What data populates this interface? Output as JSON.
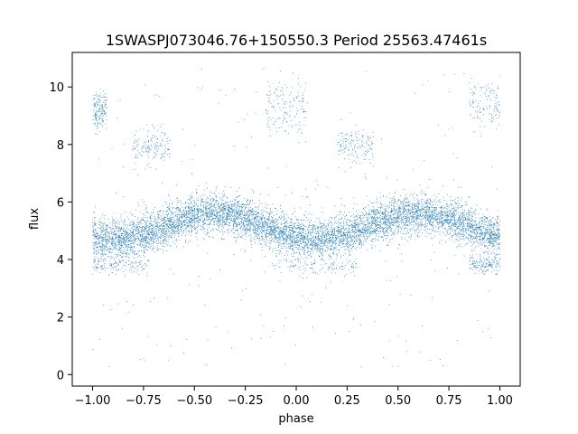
{
  "chart_data": {
    "type": "scatter",
    "title": "1SWASPJ073046.76+150550.3 Period 25563.47461s",
    "xlabel": "phase",
    "ylabel": "flux",
    "xlim": [
      -1.1,
      1.1
    ],
    "ylim": [
      -0.4,
      11.2
    ],
    "x_ticks": [
      -1.0,
      -0.75,
      -0.5,
      -0.25,
      0.0,
      0.25,
      0.5,
      0.75,
      1.0
    ],
    "x_tick_labels": [
      "−1.00",
      "−0.75",
      "−0.50",
      "−0.25",
      "0.00",
      "0.25",
      "0.50",
      "0.75",
      "1.00"
    ],
    "y_ticks": [
      0,
      2,
      4,
      6,
      8,
      10
    ],
    "y_tick_labels": [
      "0",
      "2",
      "4",
      "6",
      "8",
      "10"
    ],
    "grid": false,
    "point_color": "#1f77b4",
    "main_band": {
      "description_of_shape": "sinusoid",
      "phase_range": [
        -1.0,
        1.0
      ],
      "mean_flux": 5.15,
      "amplitude": 0.45,
      "minimum_phase": -0.95,
      "maximum_phase": -0.4,
      "scatter": 0.35
    },
    "secondary_groups": [
      {
        "phase_range": [
          -1.0,
          -0.72
        ],
        "flux_center": 3.8,
        "flux_spread": 0.15
      },
      {
        "phase_range": [
          -0.12,
          0.3
        ],
        "flux_center": 3.75,
        "flux_spread": 0.15
      },
      {
        "phase_range": [
          0.85,
          1.0
        ],
        "flux_center": 3.8,
        "flux_spread": 0.15
      },
      {
        "phase_range": [
          -1.0,
          -0.93
        ],
        "flux_center": 9.2,
        "flux_spread": 0.35
      },
      {
        "phase_range": [
          -0.15,
          0.05
        ],
        "flux_center": 9.3,
        "flux_spread": 0.5
      },
      {
        "phase_range": [
          0.85,
          1.0
        ],
        "flux_center": 9.4,
        "flux_spread": 0.4
      },
      {
        "phase_range": [
          -0.8,
          -0.62
        ],
        "flux_center": 8.0,
        "flux_spread": 0.3
      },
      {
        "phase_range": [
          0.2,
          0.38
        ],
        "flux_center": 8.0,
        "flux_spread": 0.3
      }
    ],
    "outlier_flux_range": [
      0.2,
      10.7
    ],
    "approx_point_count": 9000
  }
}
